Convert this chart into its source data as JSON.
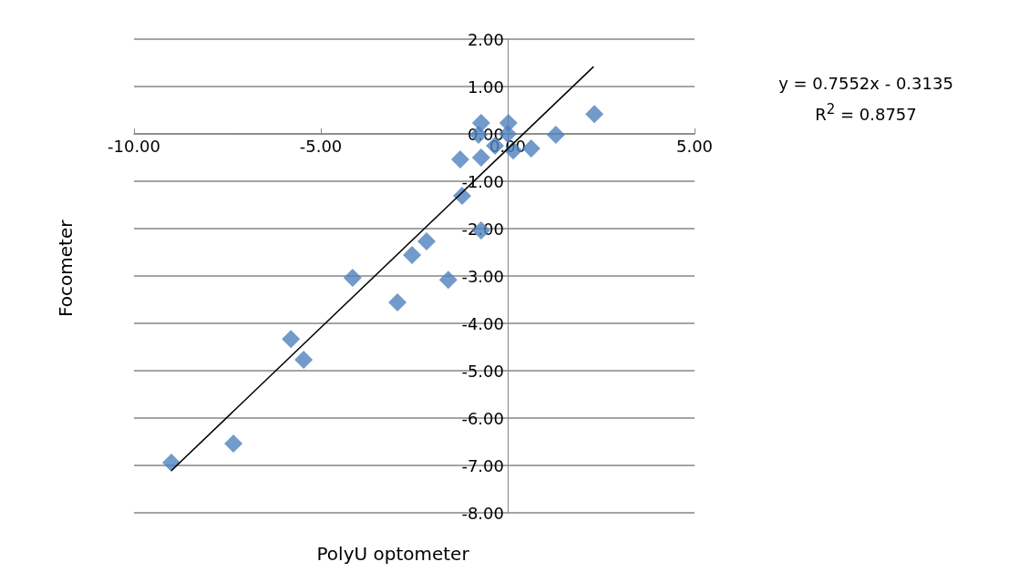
{
  "chart_data": {
    "type": "scatter",
    "xlabel": "PolyU optometer",
    "ylabel": "Focometer",
    "xlim": [
      -10,
      5
    ],
    "xticks": [
      {
        "value": -10,
        "label": "-10.00"
      },
      {
        "value": -5,
        "label": "-5.00"
      },
      {
        "value": 0,
        "label": "0.00"
      },
      {
        "value": 5,
        "label": "5.00"
      }
    ],
    "ylim": [
      -8,
      2
    ],
    "yticks": [
      {
        "value": -8,
        "label": "-8.00"
      },
      {
        "value": -7,
        "label": "-7.00"
      },
      {
        "value": -6,
        "label": "-6.00"
      },
      {
        "value": -5,
        "label": "-5.00"
      },
      {
        "value": -4,
        "label": "-4.00"
      },
      {
        "value": -3,
        "label": "-3.00"
      },
      {
        "value": -2,
        "label": "-2.00"
      },
      {
        "value": -1,
        "label": "-1.00"
      },
      {
        "value": 0,
        "label": "0.00"
      },
      {
        "value": 1,
        "label": "1.00"
      },
      {
        "value": 2,
        "label": "2.00"
      }
    ],
    "grid": "y",
    "marker": "diamond",
    "annotations": [
      "y = 0.7552x - 0.3135",
      "R$^{2}$ = 0.8757"
    ],
    "series": [
      {
        "type": "scatter",
        "color": "#4f81bd",
        "x": [
          -9.0,
          -7.34,
          -5.8,
          -5.46,
          -4.15,
          -2.95,
          -2.56,
          -2.17,
          -1.59,
          -1.22,
          -1.27,
          -0.71,
          -0.71,
          -0.78,
          -0.71,
          -0.34,
          0.02,
          0.0,
          0.15,
          0.63,
          1.29,
          2.32
        ],
        "values": [
          -6.94,
          -6.54,
          -4.33,
          -4.77,
          -3.04,
          -3.56,
          -2.56,
          -2.27,
          -3.08,
          -1.31,
          -0.54,
          -0.5,
          -2.04,
          -0.02,
          0.23,
          -0.25,
          0.23,
          0.0,
          -0.35,
          -0.31,
          -0.02,
          0.42
        ]
      },
      {
        "type": "line",
        "color": "#000000",
        "marker": "none",
        "x": [
          -9.0,
          2.3
        ],
        "values": [
          -7.11,
          1.42
        ]
      }
    ]
  }
}
